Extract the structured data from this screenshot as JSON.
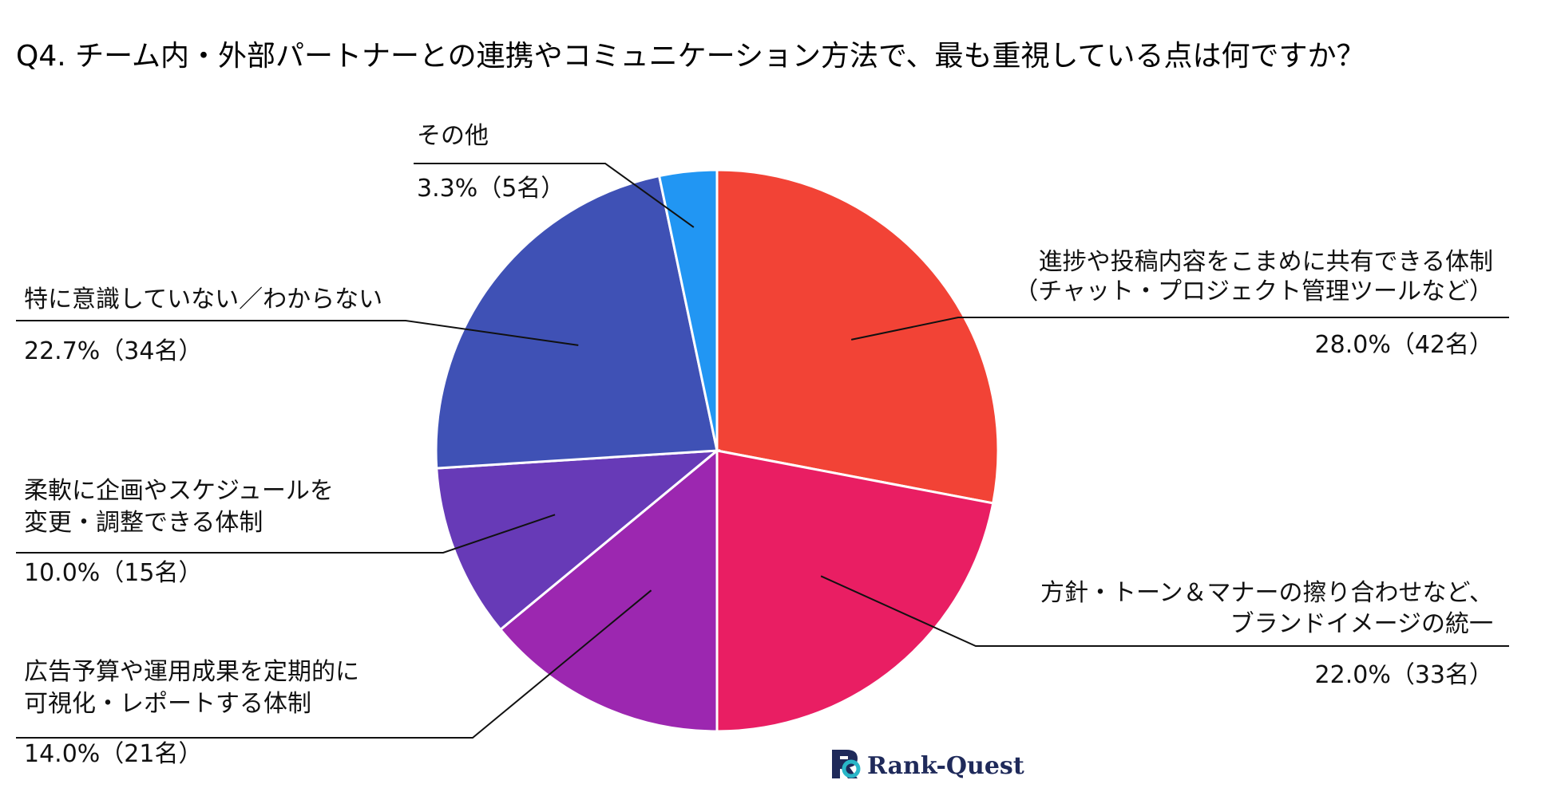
{
  "chart_data": {
    "type": "pie",
    "title": "Q4. チーム内・外部パートナーとの連携やコミュニケーション方法で、最も重視している点は何ですか？",
    "start_angle_deg": 0,
    "direction": "clockwise",
    "slices": [
      {
        "lines": [
          "進捗や投稿内容をこまめに共有できる体制",
          "（チャット・プロジェクト管理ツールなど）"
        ],
        "value": 28.0,
        "count": 42,
        "value_label": "28.0%（42名）",
        "color": "#f24336"
      },
      {
        "lines": [
          "方針・トーン＆マナーの擦り合わせなど、",
          "ブランドイメージの統一"
        ],
        "value": 22.0,
        "count": 33,
        "value_label": "22.0%（33名）",
        "color": "#e91e63"
      },
      {
        "lines": [
          "広告予算や運用成果を定期的に",
          "可視化・レポートする体制"
        ],
        "value": 14.0,
        "count": 21,
        "value_label": "14.0%（21名）",
        "color": "#9c27b0"
      },
      {
        "lines": [
          "柔軟に企画やスケジュールを",
          "変更・調整できる体制"
        ],
        "value": 10.0,
        "count": 15,
        "value_label": "10.0%（15名）",
        "color": "#673ab7"
      },
      {
        "lines": [
          "特に意識していない／わからない"
        ],
        "value": 22.7,
        "count": 34,
        "value_label": "22.7%（34名）",
        "color": "#3f51b5"
      },
      {
        "lines": [
          "その他"
        ],
        "value": 3.3,
        "count": 5,
        "value_label": "3.3%（5名）",
        "color": "#2196f3"
      }
    ]
  },
  "brand": {
    "name": "Rank-Quest",
    "logo_icon": "rq-logo-icon",
    "color": "#1f2a5a",
    "accent": "#29b6c8"
  }
}
